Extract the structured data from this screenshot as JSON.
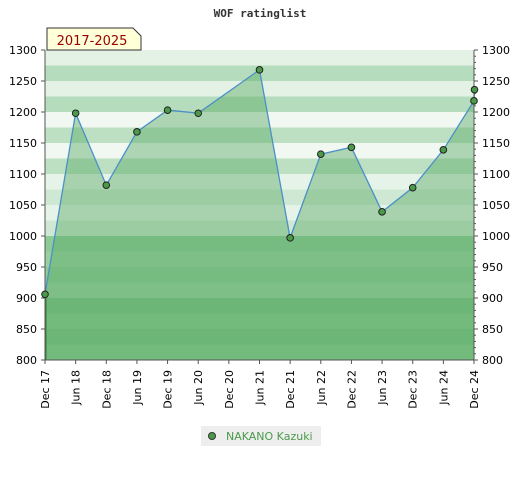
{
  "chart_data": {
    "type": "line",
    "title": "WOF ratinglist",
    "period_badge": "2017-2025",
    "xlabel": "",
    "ylabel": "",
    "ylim": [
      800,
      1300
    ],
    "yticks": [
      800,
      850,
      900,
      950,
      1000,
      1050,
      1100,
      1150,
      1200,
      1250,
      1300
    ],
    "ytick_labels": [
      "800",
      "850",
      "900",
      "950",
      "1000",
      "1050",
      "1100",
      "1150",
      "1200",
      "1250",
      "1300"
    ],
    "xticks": [
      {
        "label": "Dec 17",
        "month": 0
      },
      {
        "label": "Jun 18",
        "month": 6
      },
      {
        "label": "Dec 18",
        "month": 12
      },
      {
        "label": "Jun 19",
        "month": 18
      },
      {
        "label": "Dec 19",
        "month": 24
      },
      {
        "label": "Jun 20",
        "month": 30
      },
      {
        "label": "Dec 20",
        "month": 36
      },
      {
        "label": "Jun 21",
        "month": 42
      },
      {
        "label": "Dec 21",
        "month": 48
      },
      {
        "label": "Jun 22",
        "month": 54
      },
      {
        "label": "Dec 22",
        "month": 60
      },
      {
        "label": "Jun 23",
        "month": 66
      },
      {
        "label": "Dec 23",
        "month": 72
      },
      {
        "label": "Jun 24",
        "month": 78
      },
      {
        "label": "Dec 24",
        "month": 84
      }
    ],
    "xlim": [
      0,
      84
    ],
    "grid": true,
    "legend": "bottom-center",
    "series": [
      {
        "name": "NAKANO Kazuki",
        "color": "#4a9a4a",
        "x": [
          0,
          6,
          12,
          18,
          24,
          30,
          42,
          48,
          54,
          60,
          66,
          72,
          78,
          84,
          85
        ],
        "y": [
          906,
          1198,
          1082,
          1168,
          1203,
          1198,
          1268,
          997,
          1132,
          1143,
          1039,
          1078,
          1139,
          1218,
          1236
        ]
      }
    ]
  }
}
